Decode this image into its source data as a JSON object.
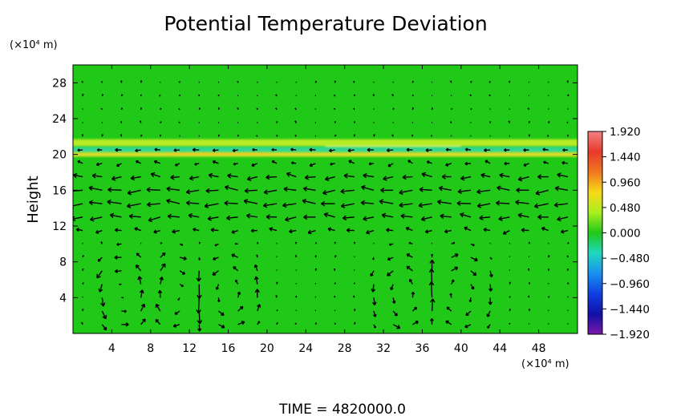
{
  "chart_data": {
    "type": "heatmap",
    "title": "Potential Temperature Deviation",
    "ylabel": "Height",
    "x_unit": "(×10⁴ m)",
    "y_unit": "(×10⁴ m)",
    "footer": "TIME  =  4820000.0",
    "xlim": [
      0,
      52
    ],
    "ylim": [
      0,
      30
    ],
    "x_ticks": [
      4,
      8,
      12,
      16,
      20,
      24,
      28,
      32,
      36,
      40,
      44,
      48
    ],
    "y_ticks": [
      4,
      8,
      12,
      16,
      20,
      24,
      28
    ],
    "x_tick_labels": [
      "4",
      "8",
      "12",
      "16",
      "20",
      "24",
      "28",
      "32",
      "36",
      "40",
      "44",
      "48"
    ],
    "y_tick_labels": [
      "4",
      "8",
      "12",
      "16",
      "20",
      "24",
      "28"
    ],
    "background_value": 0.0,
    "features": [
      {
        "y": 21.3,
        "value": 0.55,
        "thickness": 0.8
      },
      {
        "y": 20.5,
        "value": -0.5,
        "thickness": 0.7
      },
      {
        "y": 20.0,
        "value": 0.75,
        "thickness": 0.5
      }
    ],
    "colorbar": {
      "vmin": -1.92,
      "vmax": 1.92,
      "tick_values": [
        1.92,
        1.44,
        0.96,
        0.48,
        0.0,
        -0.48,
        -0.96,
        -1.44,
        -1.92
      ],
      "tick_labels": [
        "1.920",
        "1.440",
        "0.960",
        "0.480",
        "0.000",
        "−0.480",
        "−0.960",
        "−1.440",
        "−1.920"
      ],
      "colors": [
        "#f28282",
        "#e83a2a",
        "#f07820",
        "#f8d818",
        "#a8f020",
        "#20c818",
        "#20d8c0",
        "#1890f0",
        "#1040e0",
        "#1010a8",
        "#7a18a8"
      ]
    },
    "vectors": {
      "color": "#000000",
      "description": "wind vectors",
      "cells": [
        {
          "x0": 2,
          "x1": 8,
          "cx": 5,
          "direction": "ccw"
        },
        {
          "x0": 8,
          "x1": 13,
          "cx": 10.5,
          "direction": "cw"
        },
        {
          "x0": 13,
          "x1": 19,
          "cx": 16,
          "direction": "ccw"
        },
        {
          "x0": 31,
          "x1": 37,
          "cx": 34,
          "direction": "ccw"
        },
        {
          "x0": 37,
          "x1": 43,
          "cx": 40,
          "direction": "cw"
        }
      ]
    }
  }
}
